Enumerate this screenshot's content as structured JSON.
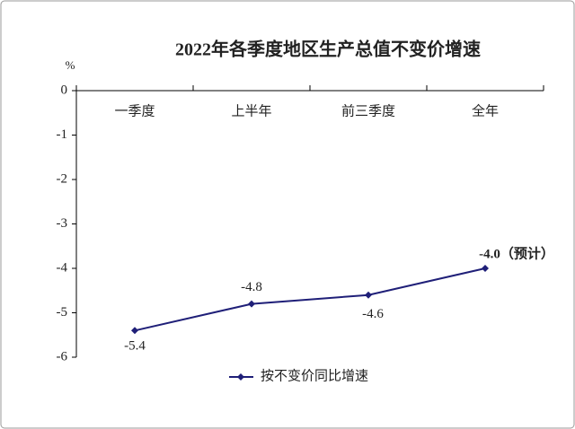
{
  "chart_data": {
    "type": "line",
    "title": "2022年各季度地区生产总值不变价增速",
    "y_unit": "%",
    "categories": [
      "一季度",
      "上半年",
      "前三季度",
      "全年"
    ],
    "series": [
      {
        "name": "按不变价同比增速",
        "color": "#1f1f78",
        "values": [
          -5.4,
          -4.8,
          -4.6,
          -4.0
        ],
        "value_labels": [
          "-5.4",
          "-4.8",
          "-4.6",
          "-4.0（预计）"
        ]
      }
    ],
    "ylim": [
      -6,
      0
    ],
    "yticks": [
      0,
      -1,
      -2,
      -3,
      -4,
      -5,
      -6
    ],
    "grid": false,
    "legend": "bottom"
  }
}
